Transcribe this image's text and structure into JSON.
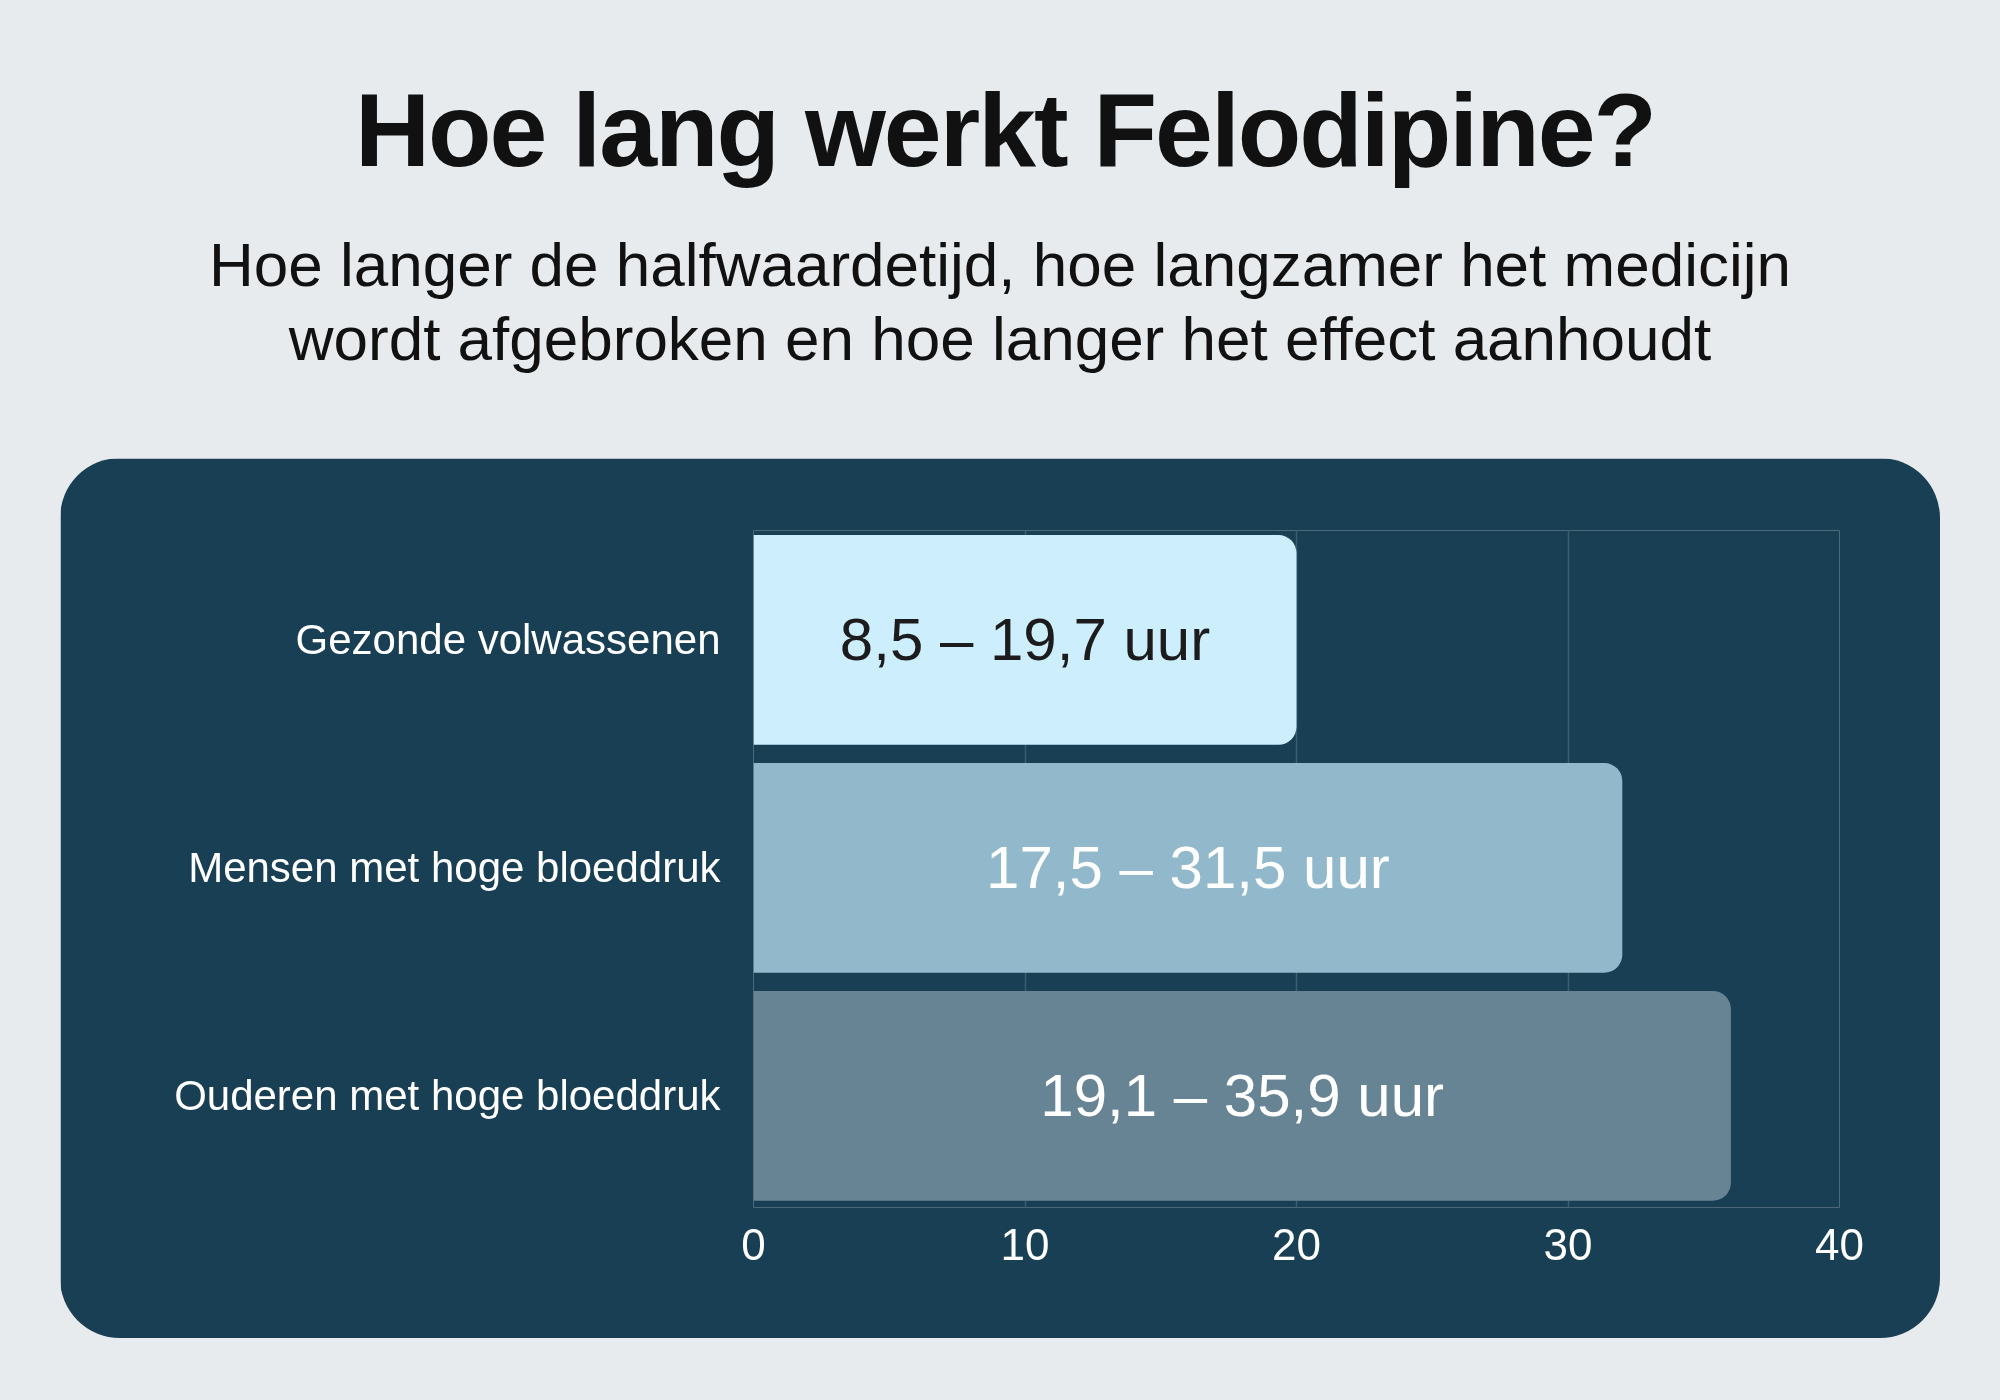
{
  "chart_data": {
    "type": "bar",
    "orientation": "horizontal",
    "title": "Hoe lang werkt Felodipine?",
    "subtitle": "Hoe langer de halfwaardetijd, hoe langzamer het medicijn wordt afgebroken en hoe langer het effect aanhoudt",
    "categories": [
      "Gezonde volwassenen",
      "Mensen met hoge bloeddruk",
      "Ouderen met hoge bloeddruk"
    ],
    "values": [
      20,
      32,
      36
    ],
    "colors": [
      "#cdeefd",
      "#91b9cb",
      "#678494"
    ],
    "annotations": [
      "8,5 – 19,7 uur",
      "17,5 – 31,5 uur",
      "19,1 – 35,9 uur"
    ],
    "xlim": [
      0,
      40
    ],
    "xticks": [
      0,
      10,
      20,
      30,
      40
    ],
    "grid": "x"
  }
}
